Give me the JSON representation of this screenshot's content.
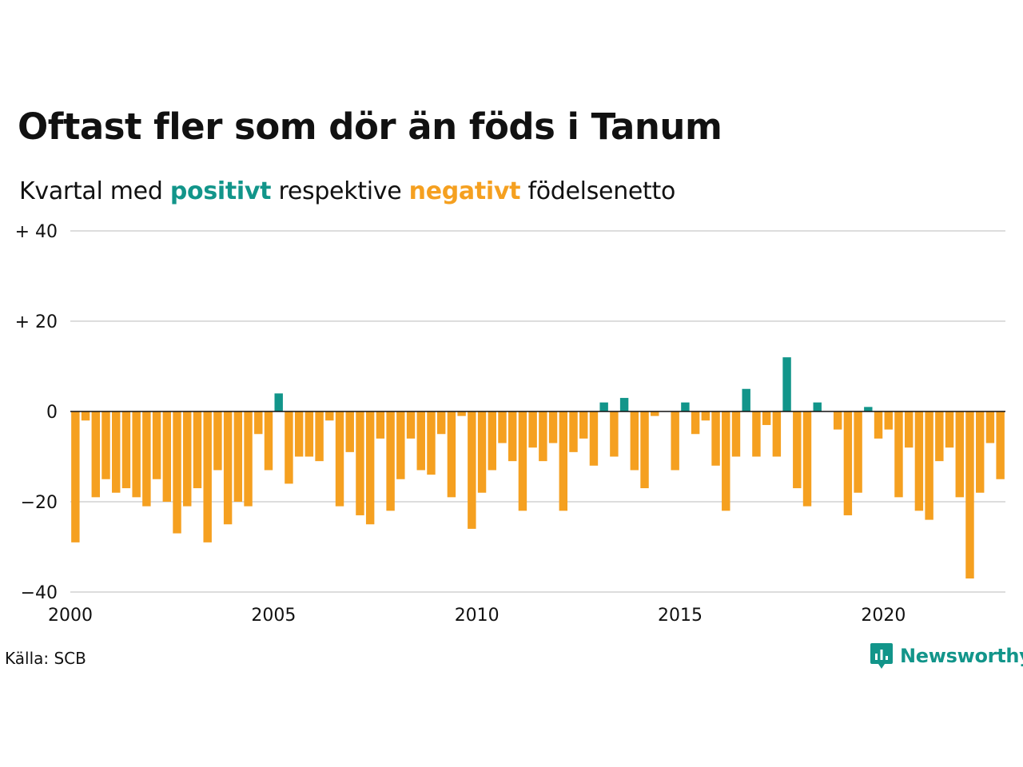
{
  "title": "Oftast fler som dör än föds i Tanum",
  "subtitle": {
    "prefix": "Kvartal med",
    "positive": "positivt",
    "middle": "respektive",
    "negative": "negativt",
    "suffix": "födelsenetto"
  },
  "source": "Källa: SCB",
  "brand": {
    "name": "Newsworthy",
    "icon": "newsworthy-logo-icon"
  },
  "colors": {
    "positive": "#12958a",
    "negative": "#f5a020",
    "grid": "#dddddd",
    "zero": "#111111"
  },
  "chart_data": {
    "type": "bar",
    "title": "Oftast fler som dör än föds i Tanum",
    "subtitle": "Kvartal med positivt respektive negativt födelsenetto",
    "x_start": 2000,
    "periods_per_year": 4,
    "xlim": [
      2000,
      2023
    ],
    "ylim": [
      -40,
      40
    ],
    "x_ticks": [
      {
        "value": 2000,
        "label": "2000"
      },
      {
        "value": 2005,
        "label": "2005"
      },
      {
        "value": 2010,
        "label": "2010"
      },
      {
        "value": 2015,
        "label": "2015"
      },
      {
        "value": 2020,
        "label": "2020"
      }
    ],
    "y_ticks": [
      {
        "value": 40,
        "label": "+ 40"
      },
      {
        "value": 20,
        "label": "+ 20"
      },
      {
        "value": 0,
        "label": "0"
      },
      {
        "value": -20,
        "label": "−20"
      },
      {
        "value": -40,
        "label": "−40"
      }
    ],
    "values": [
      -29,
      -2,
      -19,
      -15,
      -18,
      -17,
      -19,
      -21,
      -15,
      -20,
      -27,
      -21,
      -17,
      -29,
      -13,
      -25,
      -20,
      -21,
      -5,
      -13,
      4,
      -16,
      -10,
      -10,
      -11,
      -2,
      -21,
      -9,
      -23,
      -25,
      -6,
      -22,
      -15,
      -6,
      -13,
      -14,
      -5,
      -19,
      -1,
      -26,
      -18,
      -13,
      -7,
      -11,
      -22,
      -8,
      -11,
      -7,
      -22,
      -9,
      -6,
      -12,
      2,
      -10,
      3,
      -13,
      -17,
      -1,
      0,
      -13,
      2,
      -5,
      -2,
      -12,
      -22,
      -10,
      5,
      -10,
      -3,
      -10,
      12,
      -17,
      -21,
      2,
      0,
      -4,
      -23,
      -18,
      1,
      -6,
      -4,
      -19,
      -8,
      -22,
      -24,
      -11,
      -8,
      -19,
      -37,
      -18,
      -7,
      -15
    ]
  }
}
